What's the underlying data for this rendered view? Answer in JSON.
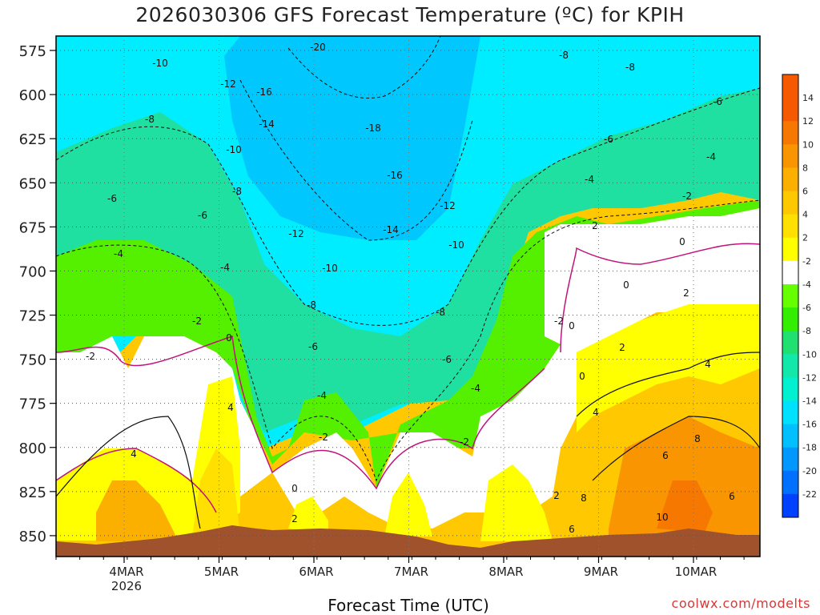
{
  "chart_data": {
    "type": "heatmap",
    "title": "2026030306 GFS Forecast Temperature (ºC) for KPIH",
    "xlabel": "Forecast Time (UTC)",
    "ylabel": "",
    "source": "coolwx.com/modelts",
    "y_axis": {
      "ticks": [
        "575",
        "600",
        "625",
        "650",
        "675",
        "700",
        "725",
        "750",
        "775",
        "800",
        "825",
        "850"
      ],
      "ylim": [
        575,
        870
      ],
      "inverted": true,
      "grid": true
    },
    "x_axis": {
      "ticks": [
        "4MAR",
        "5MAR",
        "6MAR",
        "7MAR",
        "8MAR",
        "9MAR",
        "10MAR"
      ],
      "year_label": "2026",
      "grid": true
    },
    "colorbar": {
      "labels": [
        "14",
        "12",
        "10",
        "8",
        "6",
        "4",
        "2",
        "-2",
        "-4",
        "-6",
        "-8",
        "-10",
        "-12",
        "-14",
        "-16",
        "-18",
        "-20",
        "-22"
      ],
      "colors": [
        "#f55a00",
        "#f77800",
        "#f99500",
        "#fbb000",
        "#fdc800",
        "#ffe000",
        "#ffff00",
        "#ffffff",
        "#66ff00",
        "#33ee00",
        "#1fe070",
        "#11e8aa",
        "#00f0d0",
        "#00e0ff",
        "#00c0ff",
        "#0098ff",
        "#0070ff",
        "#0040ff"
      ]
    },
    "contour_labels": [
      "-20",
      "-18",
      "-16",
      "-14",
      "-12",
      "-10",
      "-8",
      "-6",
      "-4",
      "-2",
      "0",
      "2",
      "4",
      "6",
      "8",
      "10"
    ],
    "terrain_color": "#a0522d"
  }
}
